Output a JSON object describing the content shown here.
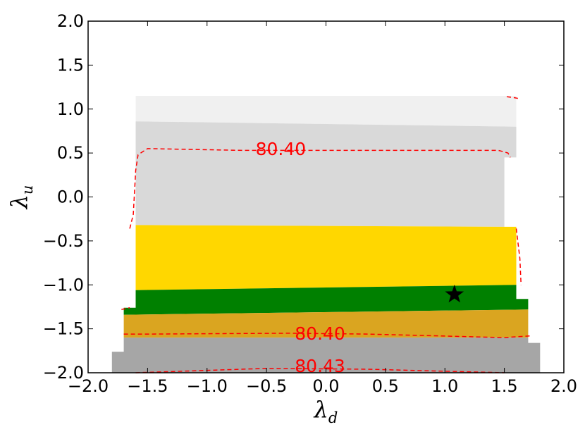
{
  "chart_data": {
    "type": "area",
    "xlim": [
      -2.0,
      2.0
    ],
    "ylim": [
      -2.0,
      2.0
    ],
    "x_ticks": [
      "−2.0",
      "−1.5",
      "−1.0",
      "−0.5",
      "0.0",
      "0.5",
      "1.0",
      "1.5",
      "2.0"
    ],
    "y_ticks": [
      "−2.0",
      "−1.5",
      "−1.0",
      "−0.5",
      "0.0",
      "0.5",
      "1.0",
      "1.5",
      "2.0"
    ],
    "x_tick_values": [
      -2.0,
      -1.5,
      -1.0,
      -0.5,
      0.0,
      0.5,
      1.0,
      1.5,
      2.0
    ],
    "y_tick_values": [
      -2.0,
      -1.5,
      -1.0,
      -0.5,
      0.0,
      0.5,
      1.0,
      1.5,
      2.0
    ],
    "xlabel": "λ",
    "xlabel_sub": "d",
    "ylabel": "λ",
    "ylabel_sub": "u",
    "grid": false,
    "regions": [
      {
        "color": "#f0f0f0",
        "polygon": [
          [
            -1.6,
            1.15
          ],
          [
            1.6,
            1.15
          ],
          [
            1.6,
            0.8
          ],
          [
            -1.6,
            0.86
          ]
        ]
      },
      {
        "color": "#d9d9d9",
        "polygon": [
          [
            -1.6,
            0.86
          ],
          [
            1.6,
            0.8
          ],
          [
            1.6,
            0.45
          ],
          [
            1.5,
            0.45
          ],
          [
            1.5,
            -0.34
          ],
          [
            -1.6,
            -0.32
          ]
        ]
      },
      {
        "color": "#ffd700",
        "polygon": [
          [
            -1.6,
            -0.32
          ],
          [
            1.5,
            -0.34
          ],
          [
            1.6,
            -0.34
          ],
          [
            1.6,
            -1.0
          ],
          [
            -1.6,
            -1.06
          ]
        ]
      },
      {
        "color": "#008000",
        "polygon": [
          [
            -1.6,
            -1.06
          ],
          [
            1.6,
            -1.0
          ],
          [
            1.6,
            -1.16
          ],
          [
            1.7,
            -1.16
          ],
          [
            1.7,
            -1.28
          ],
          [
            -1.7,
            -1.34
          ],
          [
            -1.7,
            -1.26
          ],
          [
            -1.6,
            -1.26
          ]
        ]
      },
      {
        "color": "#daa520",
        "polygon": [
          [
            -1.7,
            -1.34
          ],
          [
            1.7,
            -1.28
          ],
          [
            1.7,
            -1.6
          ],
          [
            -1.7,
            -1.6
          ]
        ]
      },
      {
        "color": "#a6a6a6",
        "polygon": [
          [
            -1.7,
            -1.6
          ],
          [
            1.7,
            -1.6
          ],
          [
            1.7,
            -1.66
          ],
          [
            1.8,
            -1.66
          ],
          [
            1.8,
            -2.0
          ],
          [
            -1.8,
            -2.0
          ],
          [
            -1.8,
            -1.76
          ],
          [
            -1.7,
            -1.76
          ]
        ]
      }
    ],
    "contours": [
      {
        "label": "80.40",
        "color": "#ff0000",
        "points": [
          [
            -1.65,
            -0.36
          ],
          [
            -1.62,
            -0.2
          ],
          [
            -1.6,
            0.3
          ],
          [
            -1.58,
            0.48
          ],
          [
            -1.5,
            0.55
          ],
          [
            -0.7,
            0.53
          ],
          [
            1.45,
            0.53
          ],
          [
            1.53,
            0.5
          ],
          [
            1.55,
            0.45
          ]
        ],
        "label_at": [
          -0.38,
          0.55
        ]
      },
      {
        "label": "",
        "color": "#ff0000",
        "points": [
          [
            1.52,
            1.14
          ],
          [
            1.58,
            1.13
          ],
          [
            1.62,
            1.12
          ]
        ]
      },
      {
        "label": "",
        "color": "#ff0000",
        "points": [
          [
            1.6,
            -0.36
          ],
          [
            1.63,
            -0.7
          ],
          [
            1.64,
            -1.0
          ]
        ]
      },
      {
        "label": "",
        "color": "#ff0000",
        "points": [
          [
            -1.72,
            -1.28
          ],
          [
            -1.65,
            -1.26
          ]
        ]
      },
      {
        "label": "80.40",
        "color": "#ff0000",
        "points": [
          [
            -1.7,
            -1.56
          ],
          [
            -1.5,
            -1.56
          ],
          [
            -0.3,
            -1.55
          ],
          [
            0.35,
            -1.56
          ],
          [
            1.5,
            -1.6
          ],
          [
            1.72,
            -1.58
          ]
        ],
        "label_at": [
          -0.05,
          -1.55
        ]
      },
      {
        "label": "80.43",
        "color": "#ff0000",
        "points": [
          [
            -1.6,
            -2.0
          ],
          [
            -0.5,
            -1.95
          ],
          [
            0.35,
            -1.96
          ],
          [
            1.5,
            -2.0
          ]
        ],
        "label_at": [
          -0.05,
          -1.92
        ]
      }
    ],
    "marker": {
      "shape": "star",
      "color": "#000000",
      "x": 1.08,
      "y": -1.11
    }
  }
}
